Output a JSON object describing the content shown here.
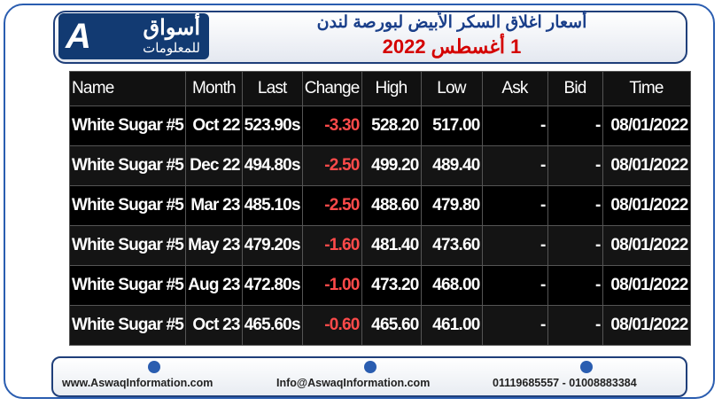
{
  "header": {
    "logo_main": "أسواق",
    "logo_sub": "للمعلومات",
    "title": "أسعار اغلاق السكر الأبيض لبورصة لندن",
    "date": "1 أغسطس 2022"
  },
  "table": {
    "columns": [
      "Name",
      "Month",
      "Last",
      "Change",
      "High",
      "Low",
      "Ask",
      "Bid",
      "Time"
    ],
    "rows": [
      [
        "White Sugar #5",
        "Oct 22",
        "523.90s",
        "-3.30",
        "528.20",
        "517.00",
        "-",
        "-",
        "08/01/2022"
      ],
      [
        "White Sugar #5",
        "Dec 22",
        "494.80s",
        "-2.50",
        "499.20",
        "489.40",
        "-",
        "-",
        "08/01/2022"
      ],
      [
        "White Sugar #5",
        "Mar 23",
        "485.10s",
        "-2.50",
        "488.60",
        "479.80",
        "-",
        "-",
        "08/01/2022"
      ],
      [
        "White Sugar #5",
        "May 23",
        "479.20s",
        "-1.60",
        "481.40",
        "473.60",
        "-",
        "-",
        "08/01/2022"
      ],
      [
        "White Sugar #5",
        "Aug 23",
        "472.80s",
        "-1.00",
        "473.20",
        "468.00",
        "-",
        "-",
        "08/01/2022"
      ],
      [
        "White Sugar #5",
        "Oct 23",
        "465.60s",
        "-0.60",
        "465.60",
        "461.00",
        "-",
        "-",
        "08/01/2022"
      ]
    ]
  },
  "footer": {
    "website": "www.AswaqInformation.com",
    "email": "Info@AswaqInformation.com",
    "phones": "01119685557 - 01008883384"
  }
}
